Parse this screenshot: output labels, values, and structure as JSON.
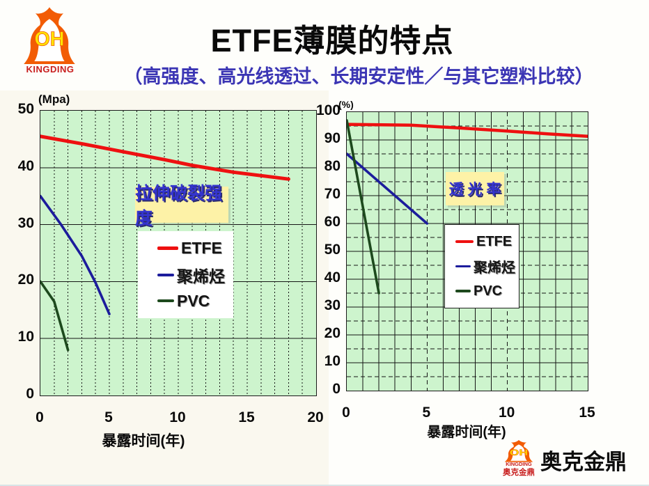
{
  "header": {
    "title": "ETFE薄膜的特点",
    "subtitle": "（高强度、高光线透过、长期安定性／与其它塑料比较）"
  },
  "logo": {
    "monogram": "OH",
    "brand": "KINGDING"
  },
  "footer": {
    "monogram": "OH",
    "brand": "KINGDING",
    "company_cn_small": "奥克金鼎",
    "wordmark": "奥克金鼎"
  },
  "colors": {
    "subtitle": "#3b35b4",
    "plot_bg": "#cdf4cd",
    "grid": "#141414",
    "label_bg": "#fdf2a7",
    "label_text": "#3434cf",
    "etfe_red": "#ee1010",
    "polyolefin_blue": "#1c1c9c",
    "pvc_green": "#1d491d",
    "logo_orange": "#f25c05",
    "logo_yellow": "#ffe400",
    "brand_red": "#c81e1e"
  },
  "chart_data": [
    {
      "type": "line",
      "title": "拉伸破裂强度",
      "unit_label": "(Mpa)",
      "xlabel": "暴露时间(年)",
      "xlim": [
        0,
        20
      ],
      "ylim": [
        0,
        50
      ],
      "xticks": [
        0,
        5,
        10,
        15,
        20
      ],
      "yticks": [
        50,
        40,
        30,
        20,
        10,
        0
      ],
      "grid": {
        "vertical": "dashed, every 1 year",
        "horizontal": "solid, every 10 MPa"
      },
      "legend_position": "inside center-left, no border",
      "series": [
        {
          "name": "ETFE",
          "color": "#ee1010",
          "points": [
            [
              0,
              45.5
            ],
            [
              3,
              44.2
            ],
            [
              6,
              42.8
            ],
            [
              9,
              41.4
            ],
            [
              11,
              40.4
            ],
            [
              14,
              39.2
            ],
            [
              18,
              38
            ]
          ]
        },
        {
          "name": "聚烯烃",
          "color": "#1c1c9c",
          "points": [
            [
              0,
              35
            ],
            [
              1.5,
              30
            ],
            [
              3,
              24.5
            ],
            [
              4,
              19.8
            ],
            [
              5,
              14.3
            ]
          ]
        },
        {
          "name": "PVC",
          "color": "#1d491d",
          "points": [
            [
              0,
              20
            ],
            [
              1,
              16.5
            ],
            [
              2,
              8
            ]
          ]
        }
      ]
    },
    {
      "type": "line",
      "title": "透 光 率",
      "unit_label": "(%)",
      "xlabel": "暴露时间(年)",
      "xlim": [
        0,
        15
      ],
      "ylim": [
        0,
        100
      ],
      "xticks": [
        0,
        5,
        10,
        15
      ],
      "yticks": [
        100,
        90,
        80,
        70,
        60,
        50,
        40,
        30,
        20,
        10,
        0
      ],
      "grid": {
        "vertical": "solid every 1 year, dashed at 5 and 10",
        "horizontal": "solid every 10%, dashed every 5%"
      },
      "legend_position": "inside bottom-center, black border",
      "series": [
        {
          "name": "ETFE",
          "color": "#ee1010",
          "points": [
            [
              0,
              95.6
            ],
            [
              4,
              95.3
            ],
            [
              7,
              94.3
            ],
            [
              10,
              93.2
            ],
            [
              12.5,
              92.2
            ],
            [
              15,
              91.3
            ]
          ]
        },
        {
          "name": "聚烯烃",
          "color": "#1c1c9c",
          "points": [
            [
              0,
              85
            ],
            [
              5,
              60
            ]
          ]
        },
        {
          "name": "PVC",
          "color": "#1d491d",
          "points": [
            [
              0,
              97
            ],
            [
              2,
              35
            ]
          ]
        }
      ]
    }
  ]
}
